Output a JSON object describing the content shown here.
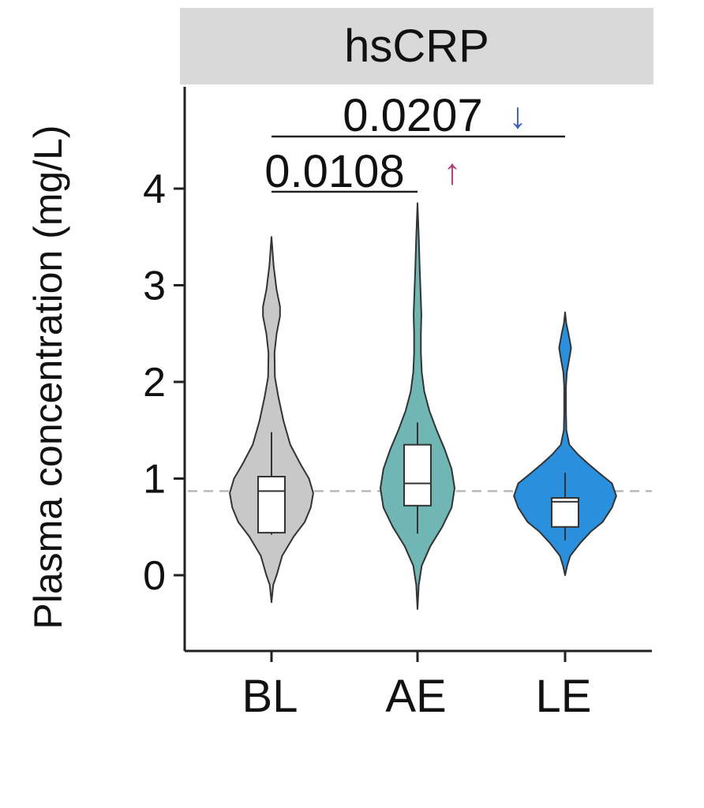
{
  "chart_data": {
    "type": "violin",
    "title": "hsCRP",
    "xlabel": "",
    "ylabel": "Plasma concentration (mg/L)",
    "categories": [
      "BL",
      "AE",
      "LE"
    ],
    "yticks": [
      "0",
      "1",
      "2",
      "3",
      "4"
    ],
    "ylim": [
      -0.8,
      5.0
    ],
    "reference_line": 0.87,
    "colors": {
      "BL": "#c8c8c8",
      "AE": "#6fb6b4",
      "LE": "#2a8fdc",
      "panel": "#d9d9d9",
      "ref": "#bbbbbb",
      "up_arrow": "#b0407a",
      "down_arrow": "#3a5fc0"
    },
    "groups": [
      {
        "name": "BL",
        "box": {
          "q1": 0.44,
          "median": 0.87,
          "q3": 1.02,
          "whisker_low": 0.42,
          "whisker_high": 1.48
        },
        "density": [
          [
            -0.28,
            0.0
          ],
          [
            -0.1,
            0.04
          ],
          [
            0.0,
            0.12
          ],
          [
            0.2,
            0.25
          ],
          [
            0.4,
            0.52
          ],
          [
            0.55,
            0.78
          ],
          [
            0.7,
            0.92
          ],
          [
            0.85,
            0.98
          ],
          [
            1.0,
            0.88
          ],
          [
            1.15,
            0.68
          ],
          [
            1.35,
            0.44
          ],
          [
            1.6,
            0.28
          ],
          [
            1.85,
            0.16
          ],
          [
            2.05,
            0.08
          ],
          [
            2.3,
            0.07
          ],
          [
            2.5,
            0.12
          ],
          [
            2.68,
            0.2
          ],
          [
            2.78,
            0.2
          ],
          [
            2.95,
            0.12
          ],
          [
            3.2,
            0.05
          ],
          [
            3.5,
            0.0
          ]
        ]
      },
      {
        "name": "AE",
        "box": {
          "q1": 0.72,
          "median": 0.95,
          "q3": 1.35,
          "whisker_low": 0.43,
          "whisker_high": 1.58
        },
        "density": [
          [
            -0.35,
            0.0
          ],
          [
            -0.1,
            0.03
          ],
          [
            0.1,
            0.1
          ],
          [
            0.3,
            0.3
          ],
          [
            0.5,
            0.58
          ],
          [
            0.7,
            0.8
          ],
          [
            0.9,
            0.87
          ],
          [
            1.1,
            0.8
          ],
          [
            1.3,
            0.64
          ],
          [
            1.5,
            0.45
          ],
          [
            1.7,
            0.28
          ],
          [
            1.9,
            0.16
          ],
          [
            2.1,
            0.1
          ],
          [
            2.3,
            0.08
          ],
          [
            2.5,
            0.08
          ],
          [
            2.7,
            0.09
          ],
          [
            2.95,
            0.07
          ],
          [
            3.2,
            0.05
          ],
          [
            3.5,
            0.03
          ],
          [
            3.85,
            0.0
          ]
        ]
      },
      {
        "name": "LE",
        "box": {
          "q1": 0.5,
          "median": 0.76,
          "q3": 0.8,
          "whisker_low": 0.36,
          "whisker_high": 1.06
        },
        "density": [
          [
            0.0,
            0.0
          ],
          [
            0.1,
            0.05
          ],
          [
            0.2,
            0.12
          ],
          [
            0.33,
            0.35
          ],
          [
            0.45,
            0.6
          ],
          [
            0.55,
            0.88
          ],
          [
            0.7,
            1.1
          ],
          [
            0.82,
            1.2
          ],
          [
            0.95,
            1.1
          ],
          [
            1.05,
            0.82
          ],
          [
            1.15,
            0.55
          ],
          [
            1.25,
            0.3
          ],
          [
            1.35,
            0.1
          ],
          [
            1.5,
            0.03
          ],
          [
            1.7,
            0.02
          ],
          [
            1.95,
            0.02
          ],
          [
            2.1,
            0.04
          ],
          [
            2.22,
            0.09
          ],
          [
            2.35,
            0.14
          ],
          [
            2.5,
            0.08
          ],
          [
            2.6,
            0.03
          ],
          [
            2.72,
            0.0
          ]
        ]
      }
    ],
    "comparisons": [
      {
        "from": "BL",
        "to": "AE",
        "label": "0.0108",
        "arrow": "↑",
        "direction": "up"
      },
      {
        "from": "BL",
        "to": "LE",
        "label": "0.0207",
        "arrow": "↓",
        "direction": "down"
      }
    ]
  }
}
